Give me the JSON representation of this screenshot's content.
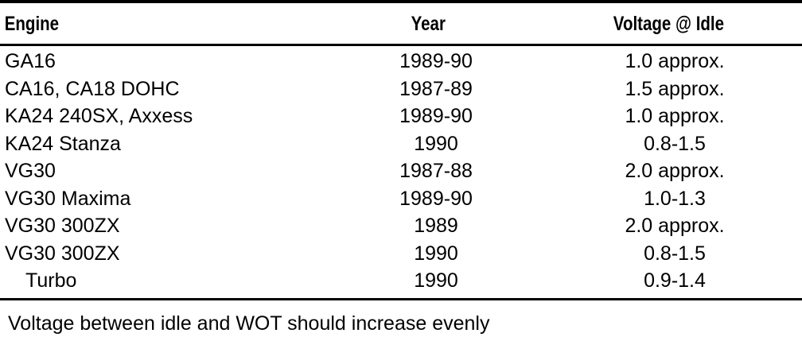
{
  "table": {
    "headers": {
      "engine": "Engine",
      "year": "Year",
      "voltage": "Voltage @ Idle"
    },
    "rows": [
      {
        "engine": "GA16",
        "year": "1989-90",
        "voltage": "1.0 approx."
      },
      {
        "engine": "CA16, CA18 DOHC",
        "year": "1987-89",
        "voltage": "1.5 approx."
      },
      {
        "engine": "KA24 240SX, Axxess",
        "year": "1989-90",
        "voltage": "1.0 approx."
      },
      {
        "engine": "KA24 Stanza",
        "year": "1990",
        "voltage": "0.8-1.5"
      },
      {
        "engine": "VG30",
        "year": "1987-88",
        "voltage": "2.0 approx."
      },
      {
        "engine": "VG30 Maxima",
        "year": "1989-90",
        "voltage": "1.0-1.3"
      },
      {
        "engine": "VG30 300ZX",
        "year": "1989",
        "voltage": "2.0 approx."
      },
      {
        "engine": "VG30 300ZX",
        "year": "1990",
        "voltage": "0.8-1.5"
      },
      {
        "engine": "Turbo",
        "year": "1990",
        "voltage": "0.9-1.4"
      }
    ],
    "footnote": "Voltage between idle and WOT should increase evenly"
  }
}
